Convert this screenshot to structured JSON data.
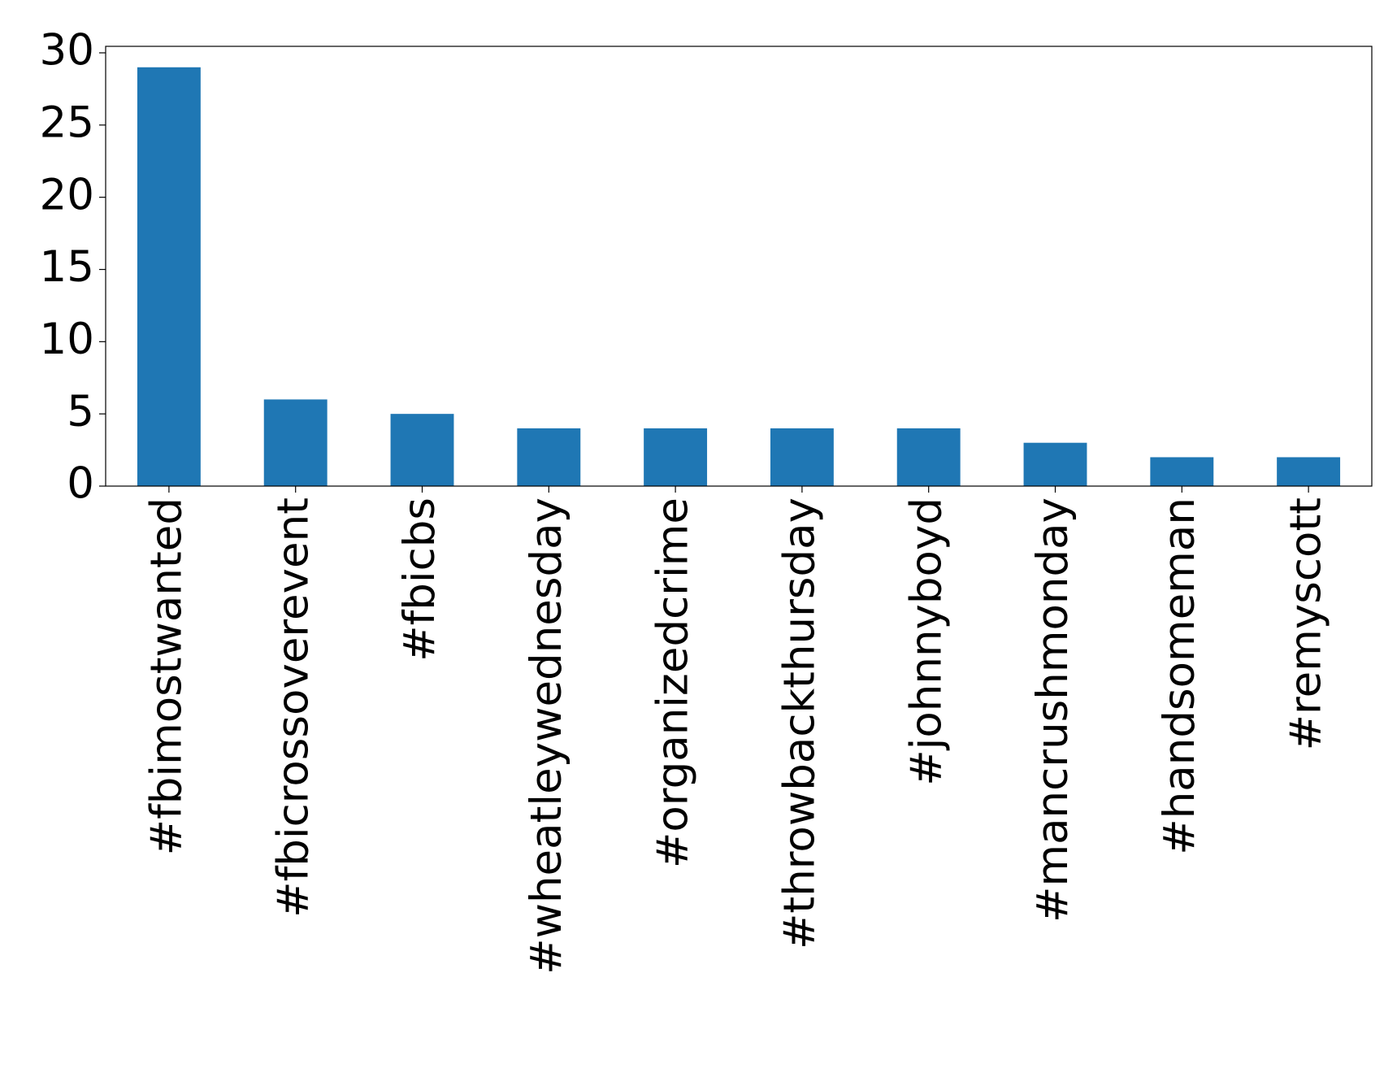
{
  "chart_data": {
    "type": "bar",
    "categories": [
      "#fbimostwanted",
      "#fbicrossoverevent",
      "#fbicbs",
      "#wheatleywednesday",
      "#organizedcrime",
      "#throwbackthursday",
      "#johnnyboyd",
      "#mancrushmonday",
      "#handsomeman",
      "#remyscott"
    ],
    "values": [
      29,
      6,
      5,
      4,
      4,
      4,
      4,
      3,
      2,
      2
    ],
    "color": "#1f77b4",
    "ylim": [
      0,
      30.45
    ],
    "yticks": [
      0,
      5,
      10,
      15,
      20,
      25,
      30
    ],
    "grid": false
  }
}
